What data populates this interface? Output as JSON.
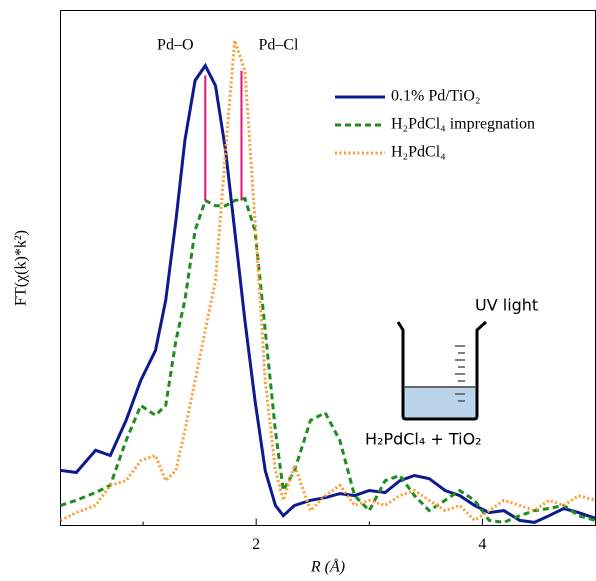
{
  "chart_data": {
    "type": "line",
    "x_label": "R (Å)",
    "y_label": "FT(χ(k)*k²)",
    "xlim": [
      0.27,
      5.0
    ],
    "ylim": [
      0,
      100
    ],
    "xticks": [
      2,
      4
    ],
    "xminorticks": [
      1,
      3
    ],
    "legend": "upper right",
    "x": [
      0.27,
      0.41,
      0.58,
      0.71,
      0.85,
      0.98,
      1.11,
      1.2,
      1.29,
      1.37,
      1.46,
      1.55,
      1.64,
      1.73,
      1.81,
      1.9,
      1.99,
      2.08,
      2.17,
      2.24,
      2.34,
      2.48,
      2.61,
      2.74,
      2.87,
      3.0,
      3.14,
      3.27,
      3.4,
      3.53,
      3.67,
      3.8,
      3.93,
      4.06,
      4.19,
      4.33,
      4.46,
      4.59,
      4.72,
      4.85,
      5.0
    ],
    "series": [
      {
        "name": "0.1% Pd/TiO₂",
        "color": "#0d1a8f",
        "style": "solid",
        "values": [
          10.7,
          10.3,
          14.6,
          13.6,
          20.4,
          28.2,
          34.0,
          43.7,
          59.2,
          74.8,
          86.4,
          89.3,
          85.4,
          72.8,
          57.3,
          39.8,
          24.3,
          10.7,
          3.9,
          1.9,
          3.9,
          4.9,
          5.4,
          6.2,
          5.8,
          6.8,
          6.4,
          8.7,
          9.7,
          9.1,
          6.8,
          5.8,
          3.9,
          2.5,
          2.9,
          1.0,
          0.6,
          1.9,
          3.3,
          2.5,
          1.4
        ]
      },
      {
        "name": "H₂PdCl₄ impregnation",
        "color": "#1e8c1e",
        "style": "dashed",
        "values": [
          3.9,
          4.9,
          6.4,
          7.8,
          16.5,
          23.3,
          21.4,
          23.3,
          35.9,
          43.7,
          57.3,
          63.1,
          62.1,
          62.1,
          63.1,
          63.5,
          57.3,
          37.9,
          18.4,
          6.8,
          10.7,
          20.4,
          21.9,
          16.5,
          5.8,
          2.9,
          8.7,
          9.7,
          5.8,
          2.9,
          4.9,
          6.8,
          4.9,
          1.0,
          0.6,
          1.9,
          2.9,
          3.3,
          3.9,
          1.9,
          1.0
        ]
      },
      {
        "name": "H₂PdCl₄",
        "color": "#ff9a2e",
        "style": "dotted",
        "values": [
          1.0,
          2.5,
          3.9,
          7.8,
          8.7,
          12.6,
          13.6,
          8.7,
          10.7,
          18.4,
          28.2,
          37.9,
          47.6,
          72.8,
          94.2,
          88.3,
          59.2,
          28.2,
          10.7,
          4.9,
          11.7,
          2.9,
          5.8,
          7.8,
          3.9,
          4.9,
          3.9,
          5.8,
          6.8,
          4.9,
          2.9,
          3.9,
          1.0,
          2.9,
          4.9,
          3.9,
          2.9,
          4.9,
          3.9,
          5.8,
          4.9
        ]
      }
    ],
    "peak_lines": [
      {
        "label": "Pd–O",
        "x": 1.55,
        "from": 63.1,
        "to": 87.4
      },
      {
        "label": "Pd–Cl",
        "x": 1.87,
        "from": 63.1,
        "to": 88.3
      }
    ],
    "peak_line_color": "#e0157a",
    "inset": {
      "top_label": "UV light",
      "bottom_label": "H₂PdCl₄ + TiO₂"
    }
  }
}
